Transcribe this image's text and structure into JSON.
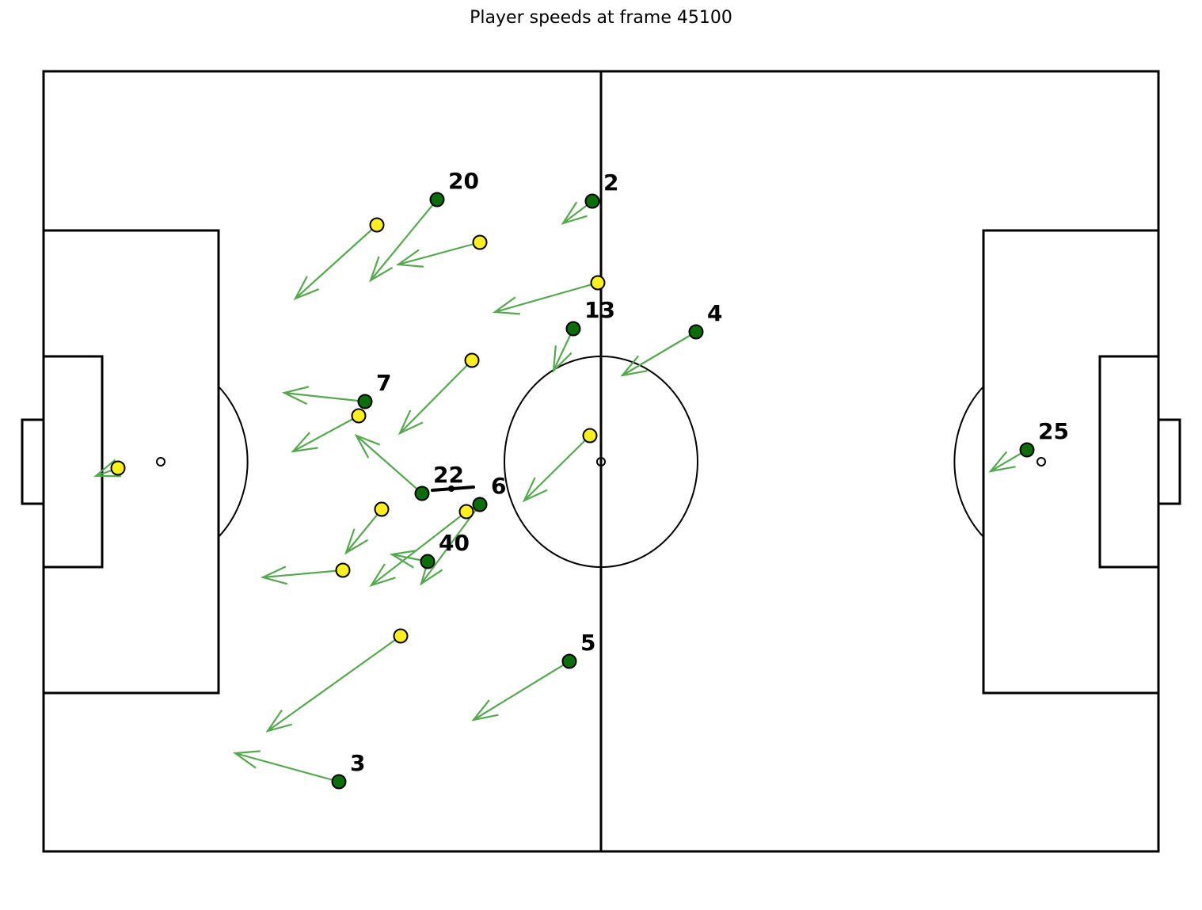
{
  "chart_data": {
    "type": "scatter",
    "title": "Player speeds at frame 45100",
    "colors": {
      "home": "#0b6e0b",
      "away": "#ffef1a",
      "arrow": "#56a84f",
      "lines": "#000000"
    },
    "home_players": [
      {
        "num": "20",
        "pos": [
          552,
          252
        ],
        "vel": [
          -84,
          102
        ]
      },
      {
        "num": "2",
        "pos": [
          748,
          254
        ],
        "vel": [
          -37,
          28
        ]
      },
      {
        "num": "13",
        "pos": [
          724,
          415
        ],
        "vel": [
          -25,
          53
        ]
      },
      {
        "num": "4",
        "pos": [
          879,
          419
        ],
        "vel": [
          -93,
          55
        ]
      },
      {
        "num": "7",
        "pos": [
          461,
          507
        ],
        "vel": [
          -102,
          -11
        ]
      },
      {
        "num": "22",
        "pos": [
          533,
          623
        ],
        "vel": [
          -83,
          -73
        ]
      },
      {
        "num": "6",
        "pos": [
          606,
          637
        ],
        "vel": [
          -74,
          100
        ]
      },
      {
        "num": "40",
        "pos": [
          540,
          709
        ],
        "vel": [
          -45,
          -9
        ]
      },
      {
        "num": "5",
        "pos": [
          719,
          835
        ],
        "vel": [
          -121,
          74
        ]
      },
      {
        "num": "3",
        "pos": [
          428,
          987
        ],
        "vel": [
          -131,
          -36
        ]
      },
      {
        "num": "25",
        "pos": [
          1297,
          568
        ],
        "vel": [
          -46,
          27
        ]
      }
    ],
    "away_players": [
      {
        "pos": [
          476,
          284
        ],
        "vel": [
          -103,
          93
        ]
      },
      {
        "pos": [
          606,
          306
        ],
        "vel": [
          -103,
          28
        ]
      },
      {
        "pos": [
          755,
          357
        ],
        "vel": [
          -130,
          37
        ]
      },
      {
        "pos": [
          596,
          455
        ],
        "vel": [
          -91,
          92
        ]
      },
      {
        "pos": [
          453,
          525
        ],
        "vel": [
          -83,
          45
        ]
      },
      {
        "pos": [
          745,
          550
        ],
        "vel": [
          -83,
          82
        ]
      },
      {
        "pos": [
          149,
          591
        ],
        "vel": [
          -28,
          10
        ]
      },
      {
        "pos": [
          482,
          643
        ],
        "vel": [
          -45,
          55
        ]
      },
      {
        "pos": [
          589,
          646
        ],
        "vel": [
          -120,
          93
        ]
      },
      {
        "pos": [
          433,
          720
        ],
        "vel": [
          -101,
          9
        ]
      },
      {
        "pos": [
          506,
          803
        ],
        "vel": [
          -168,
          120
        ]
      }
    ],
    "ball": {
      "pos": [
        570,
        617
      ]
    }
  }
}
